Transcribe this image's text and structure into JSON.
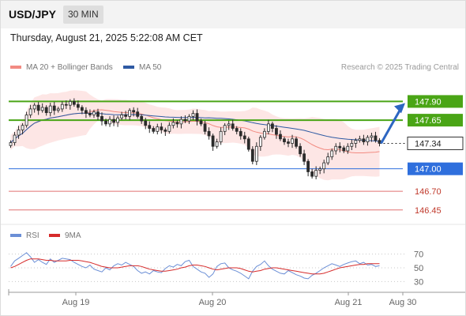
{
  "header": {
    "symbol": "USD/JPY",
    "timeframe": "30 MIN"
  },
  "datetime": "Thursday, August 21, 2025 5:22:08 AM CET",
  "legend": {
    "bb_label": "MA 20 + Bollinger Bands",
    "ma50_label": "MA 50",
    "credit": "Research © 2025 Trading Central",
    "rsi_label": "RSI",
    "ma9_label": "9MA"
  },
  "colors": {
    "bb": "#f28b82",
    "bb_band": "#fde2e0",
    "ma50": "#2e5aa3",
    "resistance": "#4aa516",
    "pivot": "#2f6fdd",
    "support": "#e07070",
    "current": "#2b2b2b",
    "candle": "#2b2b2b",
    "arrow": "#2d66c2",
    "rsi": "#6b8fd6",
    "rsi_ma": "#d62b2b"
  },
  "chart_data": [
    {
      "type": "candlestick",
      "title": "USD/JPY 30 MIN",
      "x_ticks": [
        "Aug 19",
        "Aug 20",
        "Aug 21",
        "Aug 30"
      ],
      "ylim": [
        146.3,
        148.2
      ],
      "current_price": 147.34,
      "levels": [
        {
          "value": 147.9,
          "label": "147.90",
          "role": "resistance"
        },
        {
          "value": 147.65,
          "label": "147.65",
          "role": "resistance"
        },
        {
          "value": 147.34,
          "label": "147.34",
          "role": "current"
        },
        {
          "value": 147.0,
          "label": "147.00",
          "role": "pivot"
        },
        {
          "value": 146.7,
          "label": "146.70",
          "role": "support"
        },
        {
          "value": 146.45,
          "label": "146.45",
          "role": "support"
        }
      ],
      "forecast": {
        "from": 147.34,
        "to": 147.9
      },
      "closes": [
        147.35,
        147.45,
        147.52,
        147.58,
        147.72,
        147.8,
        147.85,
        147.78,
        147.82,
        147.75,
        147.84,
        147.78,
        147.8,
        147.86,
        147.85,
        147.9,
        147.86,
        147.82,
        147.78,
        147.74,
        147.72,
        147.76,
        147.7,
        147.64,
        147.6,
        147.66,
        147.62,
        147.68,
        147.72,
        147.7,
        147.78,
        147.76,
        147.7,
        147.64,
        147.58,
        147.54,
        147.5,
        147.56,
        147.52,
        147.5,
        147.58,
        147.62,
        147.6,
        147.66,
        147.64,
        147.7,
        147.74,
        147.64,
        147.6,
        147.5,
        147.44,
        147.3,
        147.36,
        147.5,
        147.58,
        147.6,
        147.54,
        147.5,
        147.44,
        147.4,
        147.26,
        147.1,
        147.3,
        147.42,
        147.5,
        147.6,
        147.54,
        147.46,
        147.4,
        147.36,
        147.34,
        147.4,
        147.3,
        147.2,
        147.1,
        146.96,
        146.9,
        146.98,
        147.0,
        147.08,
        147.16,
        147.24,
        147.3,
        147.28,
        147.24,
        147.3,
        147.34,
        147.38,
        147.4,
        147.36,
        147.42,
        147.44,
        147.38,
        147.34
      ]
    },
    {
      "type": "line",
      "title": "RSI",
      "series": [
        {
          "name": "RSI"
        },
        {
          "name": "9MA"
        }
      ],
      "y_ticks": [
        70,
        50,
        30
      ],
      "ylim": [
        20,
        80
      ],
      "rsi": [
        52,
        60,
        64,
        68,
        72,
        66,
        58,
        62,
        58,
        55,
        63,
        58,
        61,
        64,
        63,
        62,
        58,
        55,
        52,
        50,
        54,
        48,
        46,
        44,
        50,
        47,
        53,
        56,
        54,
        58,
        55,
        52,
        46,
        42,
        44,
        41,
        46,
        44,
        43,
        49,
        53,
        51,
        55,
        53,
        59,
        61,
        52,
        48,
        44,
        42,
        36,
        41,
        52,
        56,
        57,
        50,
        47,
        45,
        42,
        38,
        34,
        45,
        52,
        55,
        60,
        53,
        48,
        45,
        42,
        41,
        46,
        43,
        40,
        38,
        35,
        34,
        39,
        42,
        46,
        50,
        53,
        56,
        54,
        52,
        55,
        57,
        59,
        60,
        56,
        58,
        54,
        55,
        52,
        53
      ],
      "ma9": [
        50,
        52,
        55,
        58,
        61,
        63,
        63,
        63,
        62,
        61,
        61,
        60,
        60,
        60,
        60,
        61,
        61,
        61,
        60,
        59,
        58,
        56,
        54,
        52,
        51,
        50,
        50,
        50,
        51,
        52,
        53,
        53,
        53,
        52,
        50,
        48,
        47,
        46,
        45,
        45,
        46,
        47,
        48,
        50,
        51,
        53,
        54,
        54,
        53,
        52,
        50,
        48,
        47,
        48,
        49,
        50,
        50,
        50,
        49,
        47,
        45,
        44,
        45,
        46,
        48,
        49,
        50,
        50,
        49,
        48,
        47,
        46,
        45,
        44,
        43,
        42,
        41,
        41,
        41,
        42,
        44,
        46,
        48,
        50,
        51,
        52,
        53,
        54,
        55,
        55,
        56,
        56,
        56,
        56
      ]
    }
  ]
}
